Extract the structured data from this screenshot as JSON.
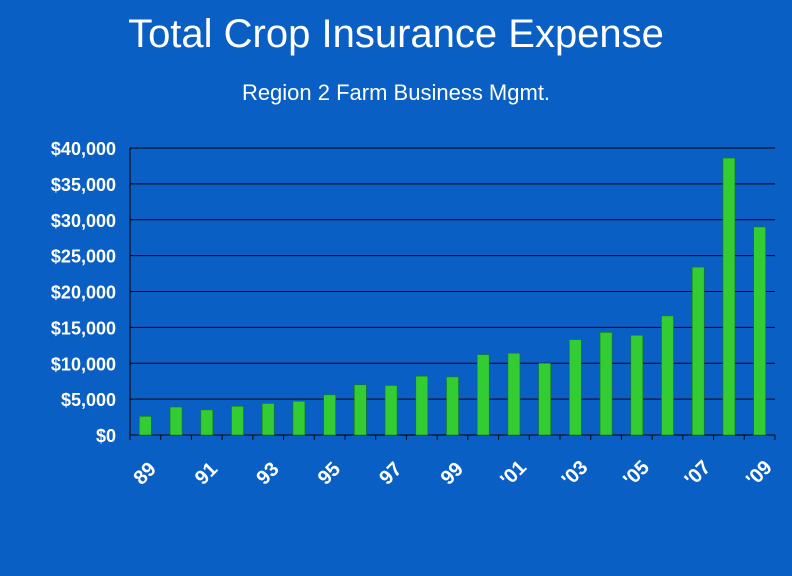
{
  "title": "Total Crop Insurance Expense",
  "subtitle": "Region 2 Farm Business Mgmt.",
  "colors": {
    "background": "#0a5fc4",
    "bar": "#33cc33",
    "text": "#ffffff",
    "grid": "#000000"
  },
  "chart_data": {
    "type": "bar",
    "title": "Total Crop Insurance Expense",
    "subtitle": "Region 2 Farm Business Mgmt.",
    "xlabel": "",
    "ylabel": "",
    "ylim": [
      0,
      40000
    ],
    "grid": true,
    "yticks": [
      0,
      5000,
      10000,
      15000,
      20000,
      25000,
      30000,
      35000,
      40000
    ],
    "ytick_labels": [
      "$0",
      "$5,000",
      "$10,000",
      "$15,000",
      "$20,000",
      "$25,000",
      "$30,000",
      "$35,000",
      "$40,000"
    ],
    "categories": [
      "89",
      "90",
      "91",
      "92",
      "93",
      "94",
      "95",
      "96",
      "97",
      "98",
      "99",
      "'00",
      "'01",
      "'02",
      "'03",
      "'04",
      "'05",
      "'06",
      "'07",
      "'08",
      "'09"
    ],
    "xtick_labels": [
      "89",
      "91",
      "93",
      "95",
      "97",
      "99",
      "'01",
      "'03",
      "'05",
      "'07",
      "'09"
    ],
    "values": [
      2600,
      3900,
      3500,
      4000,
      4400,
      4700,
      5600,
      7000,
      6900,
      8200,
      8100,
      11200,
      11400,
      10000,
      13300,
      14300,
      13900,
      16600,
      23400,
      38600,
      29000
    ]
  }
}
